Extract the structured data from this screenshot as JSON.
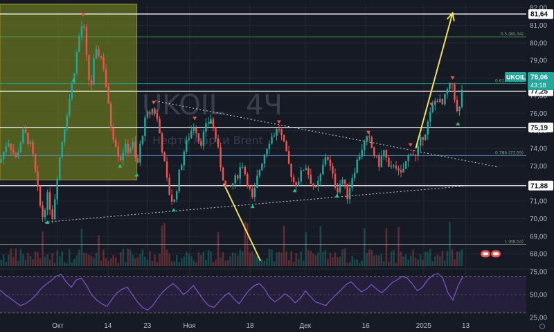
{
  "chart_data": [
    {
      "type": "candlestick",
      "symbol": "UKOIL",
      "interval": "4Ч",
      "watermark_symbol": "UKOIL",
      "watermark_interval": "4Ч",
      "watermark_sub": "Нефть марки Brent",
      "ylim": [
        67.3,
        82.2
      ],
      "yticks": [
        "82,00",
        "81,00",
        "80,00",
        "79,00",
        "78,00",
        "77,00",
        "76,00",
        "75,00",
        "74,00",
        "73,00",
        "72,00",
        "71,00",
        "70,00",
        "69,00",
        "68,00"
      ],
      "ytick_values": [
        82,
        81,
        80,
        79,
        78,
        77,
        76,
        75,
        74,
        73,
        72,
        71,
        70,
        69,
        68
      ],
      "xticks": [
        "Окт",
        "14",
        "23",
        "Ноя",
        "18",
        "Дек",
        "16",
        "2025",
        "13"
      ],
      "xtick_positions": [
        0.11,
        0.205,
        0.28,
        0.36,
        0.475,
        0.58,
        0.695,
        0.805,
        0.885
      ],
      "last_price": {
        "label": "UKOIL",
        "value": "78,06",
        "countdown": "43:18"
      },
      "levels": [
        {
          "label": "81,64",
          "value": 81.64,
          "color": "#ffffff"
        },
        {
          "label": "77,25",
          "value": 77.25,
          "color": "#ffffff"
        },
        {
          "label": "75,19",
          "value": 75.19,
          "color": "#ffffff"
        },
        {
          "label": "71,88",
          "value": 71.88,
          "color": "#ffffff"
        }
      ],
      "fib_levels": [
        {
          "label": "0.5 (80,34)",
          "value": 80.34,
          "color": "#4caf50"
        },
        {
          "label": "0.618 (77,68)",
          "value": 77.68,
          "color": "#26a69a"
        },
        {
          "label": "0.786 (73,59)",
          "value": 73.59,
          "color": "#5b9bd5"
        },
        {
          "label": "1 (68,54)",
          "value": 68.54,
          "color": "#9e9e9e"
        }
      ],
      "zone": {
        "x_range": [
          0.0,
          0.26
        ],
        "y_range": [
          72.2,
          82.2
        ],
        "color": "#6b7a1e"
      },
      "trend_lines": [
        {
          "from": [
            0.295,
            76.7
          ],
          "to": [
            0.945,
            72.95
          ],
          "style": "dotted"
        },
        {
          "from": [
            0.085,
            69.8
          ],
          "to": [
            0.88,
            71.85
          ],
          "style": "dotted"
        },
        {
          "from": [
            0.425,
            72.0
          ],
          "to": [
            0.495,
            67.6
          ],
          "style": "arrow-down",
          "color": "#f0e060"
        },
        {
          "from": [
            0.79,
            74.0
          ],
          "to": [
            0.86,
            81.7
          ],
          "style": "arrow-up",
          "color": "#f0e060"
        }
      ],
      "price_path": [
        [
          0.0,
          73.2
        ],
        [
          0.015,
          74.5
        ],
        [
          0.03,
          73.4
        ],
        [
          0.045,
          75.0
        ],
        [
          0.06,
          74.0
        ],
        [
          0.07,
          72.0
        ],
        [
          0.08,
          70.0
        ],
        [
          0.09,
          71.3
        ],
        [
          0.1,
          70.1
        ],
        [
          0.11,
          72.8
        ],
        [
          0.12,
          74.8
        ],
        [
          0.13,
          76.5
        ],
        [
          0.14,
          78.2
        ],
        [
          0.15,
          80.3
        ],
        [
          0.158,
          81.3
        ],
        [
          0.165,
          78.9
        ],
        [
          0.172,
          77.2
        ],
        [
          0.18,
          79.4
        ],
        [
          0.19,
          79.4
        ],
        [
          0.198,
          78.5
        ],
        [
          0.205,
          76.6
        ],
        [
          0.212,
          75.0
        ],
        [
          0.22,
          74.3
        ],
        [
          0.228,
          73.3
        ],
        [
          0.236,
          74.1
        ],
        [
          0.244,
          73.9
        ],
        [
          0.252,
          74.3
        ],
        [
          0.26,
          72.8
        ],
        [
          0.268,
          74.5
        ],
        [
          0.276,
          75.6
        ],
        [
          0.284,
          76.1
        ],
        [
          0.292,
          76.3
        ],
        [
          0.3,
          75.5
        ],
        [
          0.31,
          73.6
        ],
        [
          0.32,
          71.6
        ],
        [
          0.33,
          70.8
        ],
        [
          0.34,
          72.5
        ],
        [
          0.35,
          73.9
        ],
        [
          0.36,
          74.8
        ],
        [
          0.37,
          75.4
        ],
        [
          0.38,
          74.2
        ],
        [
          0.39,
          75.1
        ],
        [
          0.4,
          75.8
        ],
        [
          0.41,
          74.6
        ],
        [
          0.42,
          72.9
        ],
        [
          0.43,
          71.5
        ],
        [
          0.44,
          71.9
        ],
        [
          0.45,
          72.4
        ],
        [
          0.46,
          73.2
        ],
        [
          0.47,
          72.1
        ],
        [
          0.48,
          71.0
        ],
        [
          0.49,
          72.5
        ],
        [
          0.5,
          73.5
        ],
        [
          0.51,
          74.4
        ],
        [
          0.52,
          74.8
        ],
        [
          0.53,
          75.2
        ],
        [
          0.54,
          74.1
        ],
        [
          0.55,
          72.9
        ],
        [
          0.56,
          71.9
        ],
        [
          0.57,
          72.4
        ],
        [
          0.58,
          73.1
        ],
        [
          0.59,
          72.2
        ],
        [
          0.6,
          71.6
        ],
        [
          0.61,
          72.5
        ],
        [
          0.62,
          73.8
        ],
        [
          0.63,
          72.6
        ],
        [
          0.64,
          71.6
        ],
        [
          0.65,
          72.3
        ],
        [
          0.66,
          71.3
        ],
        [
          0.67,
          72.5
        ],
        [
          0.68,
          73.4
        ],
        [
          0.69,
          74.2
        ],
        [
          0.7,
          74.6
        ],
        [
          0.71,
          73.7
        ],
        [
          0.72,
          73.1
        ],
        [
          0.73,
          73.9
        ],
        [
          0.74,
          72.6
        ],
        [
          0.75,
          73.3
        ],
        [
          0.76,
          72.3
        ],
        [
          0.77,
          73.1
        ],
        [
          0.78,
          73.9
        ],
        [
          0.79,
          73.5
        ],
        [
          0.8,
          74.5
        ],
        [
          0.81,
          75.1
        ],
        [
          0.82,
          76.2
        ],
        [
          0.83,
          76.9
        ],
        [
          0.84,
          76.4
        ],
        [
          0.85,
          77.3
        ],
        [
          0.86,
          77.7
        ],
        [
          0.87,
          75.7
        ],
        [
          0.875,
          76.6
        ],
        [
          0.88,
          78.06
        ]
      ],
      "volume_series": "profile",
      "rsi": {
        "ylim": [
          25,
          75
        ],
        "yticks": [
          "75,00",
          "50,00",
          "25,00"
        ],
        "ytick_values": [
          75,
          50,
          25
        ],
        "levels": [
          70,
          30
        ],
        "values": [
          55,
          50,
          46,
          42,
          38,
          40,
          44,
          49,
          56,
          61,
          65,
          70,
          72,
          64,
          58,
          66,
          68,
          60,
          50,
          44,
          40,
          37,
          45,
          52,
          56,
          58,
          50,
          42,
          36,
          33,
          38,
          46,
          53,
          58,
          62,
          57,
          50,
          54,
          60,
          52,
          44,
          38,
          36,
          42,
          48,
          52,
          45,
          40,
          48,
          55,
          60,
          62,
          56,
          47,
          42,
          46,
          51,
          47,
          41,
          46,
          54,
          48,
          42,
          40,
          38,
          44,
          50,
          55,
          61,
          64,
          58,
          53,
          56,
          61,
          56,
          52,
          57,
          63,
          66,
          70,
          68,
          62,
          54,
          58,
          66,
          71,
          73,
          68,
          52,
          44,
          60,
          70
        ]
      },
      "colors": {
        "up": "#26a69a",
        "down": "#ef5350",
        "background": "#161a25",
        "grid": "#232833",
        "rsi_line": "#7e57c2",
        "rsi_band": "#251f3b",
        "accent": "#26a69a"
      }
    }
  ]
}
